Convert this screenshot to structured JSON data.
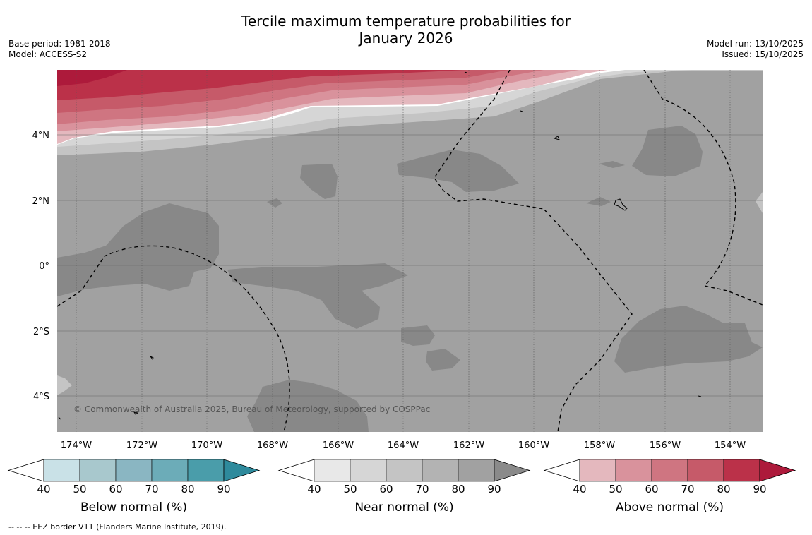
{
  "title": {
    "line1": "Tercile maximum temperature probabilities for",
    "line2": "January 2026"
  },
  "meta": {
    "base_period": "Base period: 1981-2018",
    "model": "Model: ACCESS-S2",
    "model_run": "Model run: 13/10/2025",
    "issued": "Issued: 15/10/2025"
  },
  "map": {
    "lon_labels": [
      "174°W",
      "172°W",
      "170°W",
      "168°W",
      "166°W",
      "164°W",
      "162°W",
      "160°W",
      "158°W",
      "156°W",
      "154°W"
    ],
    "lat_labels": [
      "4°N",
      "2°N",
      "0°",
      "2°S",
      "4°S"
    ],
    "copyright": "© Commonwealth of Australia 2025, Bureau of Meteorology, supported by COSPPac"
  },
  "colorbars": [
    {
      "label": "Below normal (%)",
      "ticks": [
        "40",
        "50",
        "60",
        "70",
        "80",
        "90"
      ],
      "colors": [
        "#c9e1e7",
        "#a8c8cd",
        "#8ab6c2",
        "#6cacb8",
        "#4a9daa",
        "#2e8a9c"
      ]
    },
    {
      "label": "Near normal (%)",
      "ticks": [
        "40",
        "50",
        "60",
        "70",
        "80",
        "90"
      ],
      "colors": [
        "#e8e8e8",
        "#d6d6d6",
        "#c4c4c4",
        "#b3b3b3",
        "#a1a1a1",
        "#8a8a8a"
      ]
    },
    {
      "label": "Above normal (%)",
      "ticks": [
        "40",
        "50",
        "60",
        "70",
        "80",
        "90"
      ],
      "colors": [
        "#e4b8be",
        "#d9929c",
        "#cf7581",
        "#c65a69",
        "#bb3149",
        "#ad1a3b"
      ]
    }
  ],
  "footnote": "--  --  -- EEZ border V11 (Flanders Marine Institute, 2019)."
}
